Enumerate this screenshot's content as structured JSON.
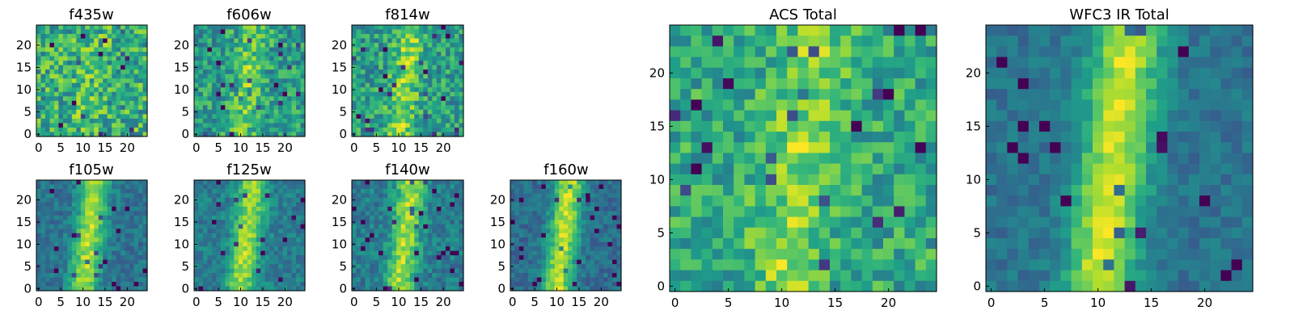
{
  "chart_data": {
    "type": "heatmap",
    "colormap": "viridis",
    "grid_size": 25,
    "panels": [
      {
        "title": "f435w",
        "xticks": [
          "0",
          "5",
          "10",
          "15",
          "20"
        ],
        "yticks": [
          "0",
          "5",
          "10",
          "15",
          "20"
        ],
        "ridge_strength": 0.08,
        "noise": 0.5,
        "base": 0.62,
        "seed": 11
      },
      {
        "title": "f606w",
        "xticks": [
          "0",
          "5",
          "10",
          "15",
          "20"
        ],
        "yticks": [
          "0",
          "5",
          "10",
          "15",
          "20"
        ],
        "ridge_strength": 0.22,
        "noise": 0.42,
        "base": 0.55,
        "seed": 23
      },
      {
        "title": "f814w",
        "xticks": [
          "0",
          "5",
          "10",
          "15",
          "20"
        ],
        "yticks": [
          "0",
          "5",
          "10",
          "15",
          "20"
        ],
        "ridge_strength": 0.28,
        "noise": 0.42,
        "base": 0.55,
        "seed": 37
      },
      {
        "title": "f105w",
        "xticks": [
          "0",
          "5",
          "10",
          "15",
          "20"
        ],
        "yticks": [
          "0",
          "5",
          "10",
          "15",
          "20"
        ],
        "ridge_strength": 0.5,
        "noise": 0.22,
        "base": 0.38,
        "seed": 41
      },
      {
        "title": "f125w",
        "xticks": [
          "0",
          "5",
          "10",
          "15",
          "20"
        ],
        "yticks": [
          "0",
          "5",
          "10",
          "15",
          "20"
        ],
        "ridge_strength": 0.45,
        "noise": 0.24,
        "base": 0.42,
        "seed": 53
      },
      {
        "title": "f140w",
        "xticks": [
          "0",
          "5",
          "10",
          "15",
          "20"
        ],
        "yticks": [
          "0",
          "5",
          "10",
          "15",
          "20"
        ],
        "ridge_strength": 0.45,
        "noise": 0.26,
        "base": 0.42,
        "seed": 67
      },
      {
        "title": "f160w",
        "xticks": [
          "0",
          "5",
          "10",
          "15",
          "20"
        ],
        "yticks": [
          "0",
          "5",
          "10",
          "15",
          "20"
        ],
        "ridge_strength": 0.55,
        "noise": 0.22,
        "base": 0.36,
        "seed": 71
      },
      {
        "title": "ACS Total",
        "xticks": [
          "0",
          "5",
          "10",
          "15",
          "20"
        ],
        "yticks": [
          "0",
          "5",
          "10",
          "15",
          "20"
        ],
        "ridge_strength": 0.22,
        "noise": 0.38,
        "base": 0.6,
        "seed": 83
      },
      {
        "title": "WFC3 IR Total",
        "xticks": [
          "0",
          "5",
          "10",
          "15",
          "20"
        ],
        "yticks": [
          "0",
          "5",
          "10",
          "15",
          "20"
        ],
        "ridge_strength": 0.55,
        "noise": 0.18,
        "base": 0.38,
        "seed": 97
      }
    ]
  }
}
